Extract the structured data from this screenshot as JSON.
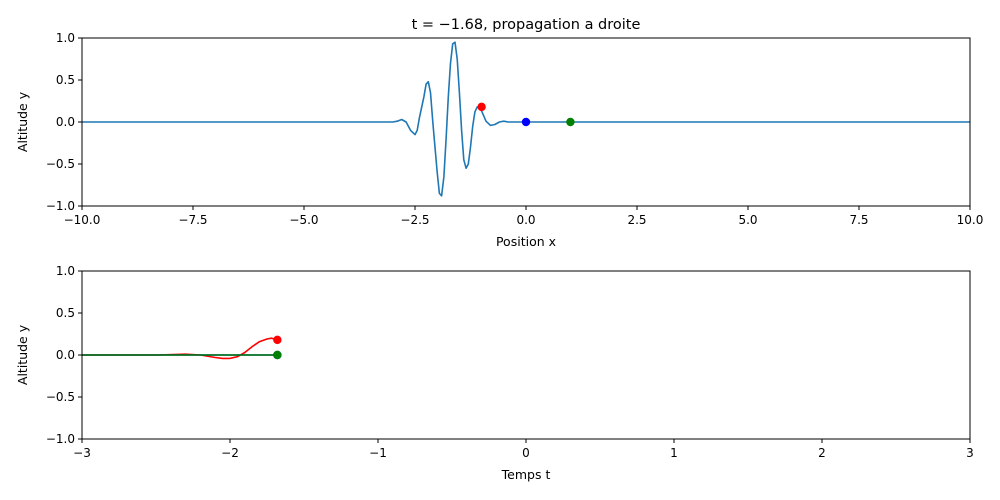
{
  "chart_data": [
    {
      "type": "line",
      "title": "t = −1.68, propagation a droite",
      "xlabel": "Position x",
      "ylabel": "Altitude y",
      "xlim": [
        -10,
        10
      ],
      "ylim": [
        -1,
        1
      ],
      "xticks": [
        "−10.0",
        "−7.5",
        "−5.0",
        "−2.5",
        "0.0",
        "2.5",
        "5.0",
        "7.5",
        "10.0"
      ],
      "yticks": [
        "1.0",
        "0.5",
        "0.0",
        "−0.5",
        "−1.0"
      ],
      "grid": false,
      "series": [
        {
          "color": "#1f77b4",
          "x": [
            -10,
            -3.2,
            -3.0,
            -2.9,
            -2.8,
            -2.7,
            -2.6,
            -2.5,
            -2.45,
            -2.4,
            -2.3,
            -2.25,
            -2.2,
            -2.15,
            -2.1,
            -2.0,
            -1.95,
            -1.9,
            -1.85,
            -1.8,
            -1.75,
            -1.7,
            -1.65,
            -1.6,
            -1.55,
            -1.5,
            -1.45,
            -1.4,
            -1.35,
            -1.3,
            -1.25,
            -1.2,
            -1.15,
            -1.1,
            -1.05,
            -1.0,
            -0.95,
            -0.9,
            -0.8,
            -0.7,
            -0.6,
            -0.5,
            -0.4,
            -0.3,
            0.0,
            10
          ],
          "y": [
            0,
            0,
            0.0,
            0.01,
            0.03,
            0.0,
            -0.1,
            -0.15,
            -0.1,
            0.05,
            0.3,
            0.45,
            0.48,
            0.35,
            0.0,
            -0.6,
            -0.85,
            -0.88,
            -0.65,
            -0.2,
            0.3,
            0.7,
            0.93,
            0.95,
            0.75,
            0.35,
            -0.1,
            -0.45,
            -0.55,
            -0.5,
            -0.3,
            -0.05,
            0.12,
            0.18,
            0.17,
            0.13,
            0.07,
            0.01,
            -0.04,
            -0.03,
            0.0,
            0.01,
            0.0,
            0.0,
            0.0,
            0.0
          ]
        }
      ],
      "markers": [
        {
          "x": -1.0,
          "y": 0.18,
          "color": "#ff0000"
        },
        {
          "x": 0.0,
          "y": 0.0,
          "color": "#0000ff"
        },
        {
          "x": 1.0,
          "y": 0.0,
          "color": "#008000"
        }
      ]
    },
    {
      "type": "line",
      "title": "",
      "xlabel": "Temps t",
      "ylabel": "Altitude y",
      "xlim": [
        -3,
        3
      ],
      "ylim": [
        -1,
        1
      ],
      "xticks": [
        "−3",
        "−2",
        "−1",
        "0",
        "1",
        "2",
        "3"
      ],
      "yticks": [
        "1.0",
        "0.5",
        "0.0",
        "−0.5",
        "−1.0"
      ],
      "grid": false,
      "series": [
        {
          "color": "#ff0000",
          "x": [
            -3.0,
            -2.5,
            -2.3,
            -2.2,
            -2.1,
            -2.05,
            -2.0,
            -1.95,
            -1.9,
            -1.85,
            -1.8,
            -1.75,
            -1.72,
            -1.68
          ],
          "y": [
            0.0,
            0.0,
            0.01,
            0.0,
            -0.03,
            -0.04,
            -0.04,
            -0.02,
            0.03,
            0.1,
            0.16,
            0.19,
            0.2,
            0.18
          ]
        },
        {
          "color": "#0000ff",
          "x": [
            -3.0,
            -1.68
          ],
          "y": [
            0.0,
            0.0
          ]
        },
        {
          "color": "#008000",
          "x": [
            -3.0,
            -1.68
          ],
          "y": [
            0.0,
            0.0
          ]
        }
      ],
      "markers": [
        {
          "x": -1.68,
          "y": 0.18,
          "color": "#ff0000"
        },
        {
          "x": -1.68,
          "y": 0.0,
          "color": "#0000ff"
        },
        {
          "x": -1.68,
          "y": 0.0,
          "color": "#008000"
        }
      ]
    }
  ]
}
